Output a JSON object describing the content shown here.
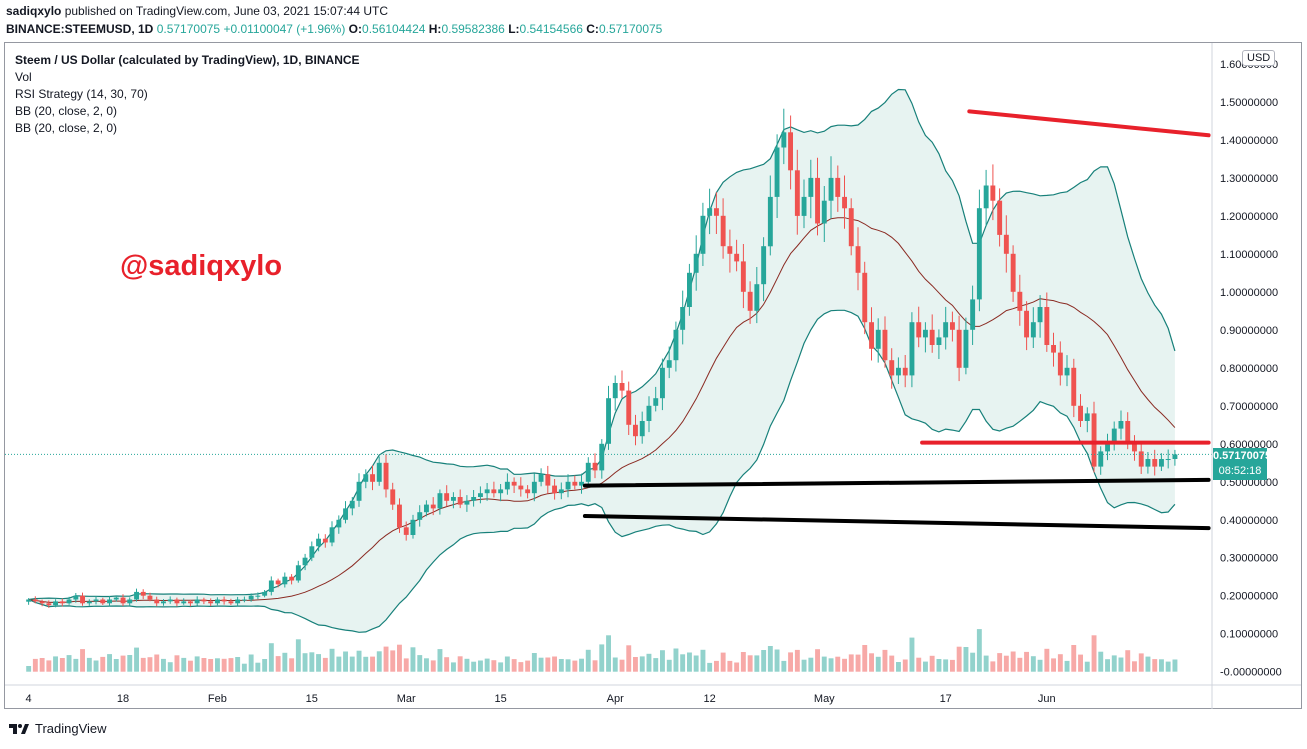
{
  "header": {
    "author": "sadiqxylo",
    "published_text": " published on TradingView.com, June 03, 2021 15:07:44 UTC",
    "symbol": "BINANCE:STEEMUSD, 1D",
    "close_value": "0.57170075",
    "change_text": "+0.01100047 (+1.96%)",
    "o_label": "O:",
    "o_value": "0.56104424",
    "h_label": "H:",
    "h_value": "0.59582386",
    "l_label": "L:",
    "l_value": "0.54154566",
    "c_label": "C:",
    "c_value": "0.57170075"
  },
  "legend": {
    "title": "Steem / US Dollar (calculated by TradingView), 1D, BINANCE",
    "vol": "Vol",
    "rsi": "RSI Strategy (14, 30, 70)",
    "bb1": "BB (20, close, 2, 0)",
    "bb2": "BB (20, close, 2, 0)"
  },
  "watermark": "@sadiqxylo",
  "currency": "USD",
  "price_badge": {
    "price": "0.57170075",
    "countdown": "08:52:18"
  },
  "footer": {
    "brand": "TradingView"
  },
  "colors": {
    "up": "#26a69a",
    "down": "#ef5350",
    "bb_fill": "#e4f2f0",
    "bb_band": "#17807a",
    "bb_mid": "#8a2a22",
    "resistance": "#e8212b",
    "support": "#000000"
  },
  "chart_data": {
    "type": "candlestick",
    "y_ticks": [
      "1.60000000",
      "1.50000000",
      "1.40000000",
      "1.30000000",
      "1.20000000",
      "1.10000000",
      "1.00000000",
      "0.90000000",
      "0.80000000",
      "0.70000000",
      "0.60000000",
      "0.50000000",
      "0.40000000",
      "0.30000000",
      "0.20000000",
      "0.10000000",
      "-0.00000000"
    ],
    "y_tick_values": [
      1.6,
      1.5,
      1.4,
      1.3,
      1.2,
      1.1,
      1.0,
      0.9,
      0.8,
      0.7,
      0.6,
      0.5,
      0.4,
      0.3,
      0.2,
      0.1,
      0.0
    ],
    "ylim": [
      -0.035,
      1.655
    ],
    "x_ticks": [
      "4",
      "18",
      "Feb",
      "15",
      "Mar",
      "15",
      "Apr",
      "12",
      "May",
      "17",
      "Jun"
    ],
    "x_tick_days": [
      0,
      14,
      28,
      42,
      56,
      70,
      87,
      101,
      118,
      136,
      151
    ],
    "x_range_days": [
      -3.5,
      175.5
    ],
    "closes": [
      0.19,
      0.185,
      0.18,
      0.175,
      0.185,
      0.18,
      0.19,
      0.2,
      0.18,
      0.185,
      0.19,
      0.18,
      0.19,
      0.195,
      0.18,
      0.19,
      0.21,
      0.2,
      0.19,
      0.18,
      0.185,
      0.19,
      0.18,
      0.185,
      0.18,
      0.19,
      0.185,
      0.18,
      0.19,
      0.185,
      0.18,
      0.19,
      0.19,
      0.2,
      0.2,
      0.21,
      0.24,
      0.23,
      0.25,
      0.24,
      0.28,
      0.3,
      0.33,
      0.35,
      0.34,
      0.38,
      0.4,
      0.43,
      0.45,
      0.5,
      0.52,
      0.5,
      0.55,
      0.48,
      0.44,
      0.38,
      0.36,
      0.4,
      0.42,
      0.44,
      0.43,
      0.47,
      0.45,
      0.46,
      0.44,
      0.45,
      0.46,
      0.47,
      0.48,
      0.47,
      0.48,
      0.5,
      0.49,
      0.48,
      0.47,
      0.5,
      0.52,
      0.49,
      0.47,
      0.48,
      0.5,
      0.49,
      0.5,
      0.55,
      0.53,
      0.6,
      0.72,
      0.76,
      0.74,
      0.65,
      0.62,
      0.66,
      0.7,
      0.72,
      0.8,
      0.82,
      0.9,
      0.96,
      1.05,
      1.1,
      1.2,
      1.22,
      1.2,
      1.12,
      1.1,
      1.08,
      1.0,
      0.95,
      1.02,
      1.12,
      1.25,
      1.38,
      1.42,
      1.32,
      1.2,
      1.25,
      1.3,
      1.18,
      1.24,
      1.3,
      1.25,
      1.22,
      1.12,
      1.05,
      0.92,
      0.85,
      0.9,
      0.82,
      0.78,
      0.8,
      0.78,
      0.92,
      0.88,
      0.9,
      0.86,
      0.88,
      0.92,
      0.9,
      0.8,
      0.9,
      0.98,
      1.22,
      1.28,
      1.24,
      1.15,
      1.1,
      1.0,
      0.95,
      0.88,
      0.92,
      0.96,
      0.86,
      0.84,
      0.78,
      0.8,
      0.7,
      0.66,
      0.68,
      0.54,
      0.58,
      0.6,
      0.64,
      0.66,
      0.6,
      0.58,
      0.54,
      0.56,
      0.54,
      0.56,
      0.56,
      0.572
    ]
  },
  "annotations": {
    "resistance_top": {
      "from": [
        139.5,
        1.475
      ],
      "to": [
        175.0,
        1.412
      ]
    },
    "resistance_mid": {
      "from": [
        132.5,
        0.603
      ],
      "to": [
        175.0,
        0.603
      ]
    },
    "support_upper": {
      "from": [
        82.5,
        0.49
      ],
      "to": [
        175.0,
        0.505
      ]
    },
    "support_lower": {
      "from": [
        82.5,
        0.41
      ],
      "to": [
        175.0,
        0.378
      ]
    }
  }
}
